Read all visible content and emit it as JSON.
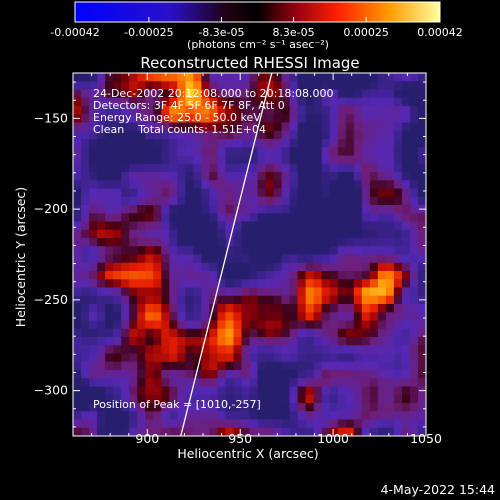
{
  "colorbar": {
    "ticks": [
      "-0.00042",
      "-0.00025",
      "-8.3e-05",
      "8.3e-05",
      "0.00025",
      "0.00042"
    ],
    "tick_values": [
      -0.00042,
      -0.00025,
      -8.3e-05,
      8.3e-05,
      0.00025,
      0.00042
    ],
    "range": [
      -0.00042,
      0.00042
    ],
    "units_label": "(photons cm⁻² s⁻¹ asec⁻²)"
  },
  "header": {
    "time_range": "24-Dec-2002 20:12:08.000 to 20:18:08.000",
    "detectors": "Detectors: 3F 4F 5F 6F 7F 8F, Att 0",
    "energy": "Energy Range: 25.0 - 50.0 keV",
    "method": "Clean    Total counts: 1.51E+04"
  },
  "peak_label": "Position of Peak = [1010,-257]",
  "footer_date": "4-May-2022 15:44",
  "chart_data": {
    "type": "heatmap",
    "title": "Reconstructed RHESSI Image",
    "xlabel": "Heliocentric X (arcsec)",
    "ylabel": "Heliocentric Y (arcsec)",
    "xlim": [
      860,
      1050
    ],
    "ylim": [
      -325,
      -125
    ],
    "xticks": [
      900,
      950,
      1000,
      1050
    ],
    "yticks": [
      -150,
      -200,
      -250,
      -300
    ],
    "xtick_labels": [
      "900",
      "950",
      "1000",
      "1050"
    ],
    "ytick_labels": [
      "−150",
      "−200",
      "−250",
      "−300"
    ],
    "peak": {
      "x": 1010,
      "y": -257
    },
    "limb_line": [
      [
        918,
        -325
      ],
      [
        967,
        -125
      ]
    ],
    "grid": false
  }
}
